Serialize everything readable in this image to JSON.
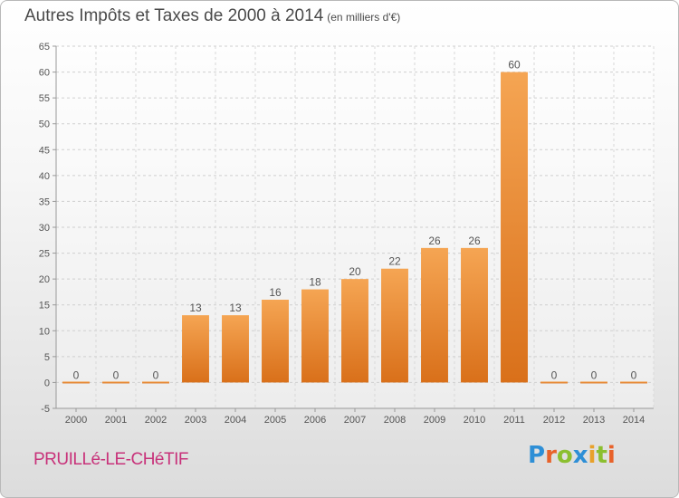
{
  "title": "Autres Impôts et Taxes de 2000 à 2014",
  "subtitle": "(en milliers d'€)",
  "location": "PRUILLé-LE-CHéTIF",
  "brand": {
    "letters": [
      {
        "char": "P",
        "color": "#2e8fd6"
      },
      {
        "char": "r",
        "color": "#e8622a"
      },
      {
        "char": "o",
        "color": "#8bbf2f"
      },
      {
        "char": "x",
        "color": "#2e8fd6"
      },
      {
        "char": "i",
        "color": "#e8a12a"
      },
      {
        "char": "t",
        "color": "#8bbf2f"
      },
      {
        "char": "i",
        "color": "#e8622a"
      }
    ]
  },
  "chart_data": {
    "type": "bar",
    "categories": [
      "2000",
      "2001",
      "2002",
      "2003",
      "2004",
      "2005",
      "2006",
      "2007",
      "2008",
      "2009",
      "2010",
      "2011",
      "2012",
      "2013",
      "2014"
    ],
    "values": [
      0,
      0,
      0,
      13,
      13,
      16,
      18,
      20,
      22,
      26,
      26,
      60,
      0,
      0,
      0
    ],
    "data_labels": [
      "0",
      "0",
      "0",
      "13",
      "13",
      "16",
      "18",
      "20",
      "22",
      "26",
      "26",
      "60",
      "0",
      "0",
      "0"
    ],
    "ylim": [
      -5,
      65
    ],
    "yticks": [
      -5,
      0,
      5,
      10,
      15,
      20,
      25,
      30,
      35,
      40,
      45,
      50,
      55,
      60,
      65
    ],
    "grid": true,
    "bar_color": "#e98a2c"
  }
}
